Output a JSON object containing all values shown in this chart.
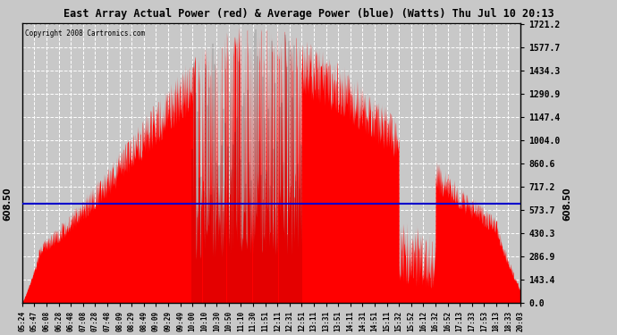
{
  "title": "East Array Actual Power (red) & Average Power (blue) (Watts) Thu Jul 10 20:13",
  "copyright": "Copyright 2008 Cartronics.com",
  "average_power": 608.5,
  "y_max": 1721.2,
  "y_min": 0.0,
  "y_ticks": [
    0.0,
    143.4,
    286.9,
    430.3,
    573.7,
    717.2,
    860.6,
    1004.0,
    1147.4,
    1290.9,
    1434.3,
    1577.7,
    1721.2
  ],
  "fill_color": "#ff0000",
  "line_color": "#0000cc",
  "bg_color": "#c8c8c8",
  "plot_bg_color": "#c8c8c8",
  "grid_color": "#ffffff",
  "x_labels": [
    "05:24",
    "05:47",
    "06:08",
    "06:28",
    "06:48",
    "07:08",
    "07:28",
    "07:48",
    "08:09",
    "08:29",
    "08:49",
    "09:09",
    "09:29",
    "09:49",
    "10:00",
    "10:10",
    "10:30",
    "10:50",
    "11:10",
    "11:30",
    "11:51",
    "12:11",
    "12:31",
    "12:51",
    "13:11",
    "13:31",
    "13:51",
    "14:11",
    "14:31",
    "14:51",
    "15:11",
    "15:32",
    "15:52",
    "16:12",
    "16:32",
    "16:52",
    "17:13",
    "17:33",
    "17:53",
    "18:13",
    "18:33",
    "20:03"
  ]
}
